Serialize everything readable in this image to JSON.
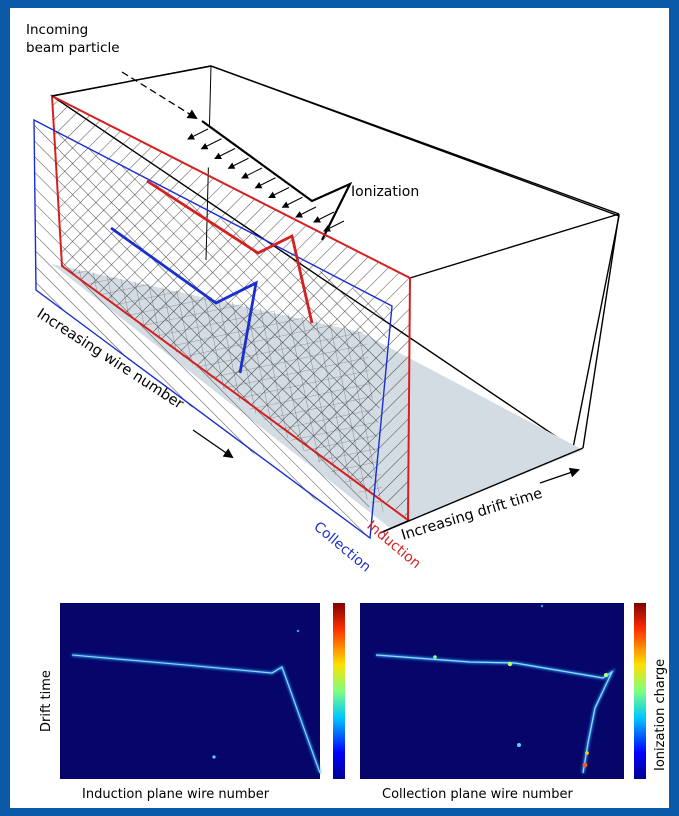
{
  "labels": {
    "incoming": [
      "Incoming",
      "beam particle"
    ],
    "ionization": "Ionization",
    "wire_axis": "Increasing wire number",
    "drift_axis": "Increasing drift time",
    "collection": "Collection",
    "induction": "Induction"
  },
  "panels": {
    "left_xlabel": "Induction plane wire number",
    "right_xlabel": "Collection plane wire number",
    "ylabel": "Drift time",
    "colorbar_label": "Ionization charge"
  },
  "colors": {
    "induction": "#d42020",
    "collection": "#1a2fd0",
    "panel_bg": "#06066a",
    "track": "#7ad0ff",
    "frame": "#0b5aa8"
  }
}
